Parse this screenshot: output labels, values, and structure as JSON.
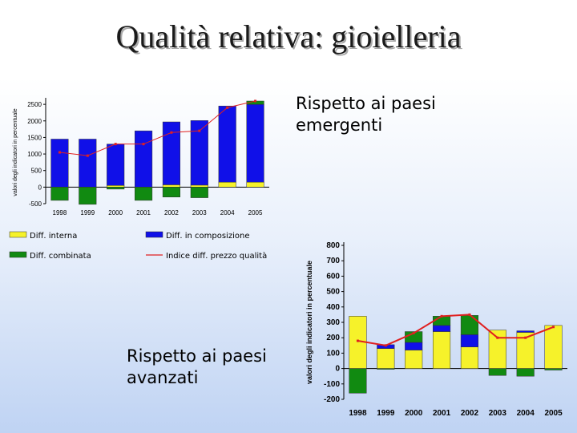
{
  "title": "Qualità relativa: gioielleria",
  "captions": {
    "emerging": "Rispetto ai paesi emergenti",
    "advanced": "Rispetto ai paesi avanzati"
  },
  "colors": {
    "interna": "#f6f22a",
    "composizione": "#1010e8",
    "combinata": "#118a11",
    "indice": "#e02020"
  },
  "chart_data": [
    {
      "type": "bar",
      "caption": "Rispetto ai paesi emergenti",
      "ylabel": "valori degli indicatori in percentuale",
      "ylim": [
        -500,
        2600
      ],
      "yticks": [
        2500,
        2000,
        1500,
        1000,
        500,
        0,
        -500
      ],
      "categories": [
        "1998",
        "1999",
        "2000",
        "2001",
        "2002",
        "2003",
        "2004",
        "2005"
      ],
      "stacked": true,
      "series": [
        {
          "name": "Diff. interna",
          "key": "interna",
          "values": [
            0,
            0,
            50,
            0,
            70,
            60,
            150,
            150
          ]
        },
        {
          "name": "Diff. in composizione",
          "key": "composizione",
          "values": [
            1450,
            1450,
            1250,
            1700,
            1900,
            1950,
            2300,
            2350
          ]
        },
        {
          "name": "Diff. combinata",
          "key": "combinata",
          "values": [
            -400,
            -520,
            -60,
            -400,
            -300,
            -320,
            0,
            100
          ]
        },
        {
          "name": "Indice diff. prezzo qualità",
          "key": "indice",
          "type": "line",
          "values": [
            1050,
            950,
            1300,
            1300,
            1650,
            1700,
            2400,
            2600
          ]
        }
      ],
      "legend": [
        {
          "label": "Diff. interna",
          "key": "interna"
        },
        {
          "label": "Diff. in composizione",
          "key": "composizione"
        },
        {
          "label": "Diff. combinata",
          "key": "combinata"
        },
        {
          "label": "Indice diff. prezzo qualità",
          "key": "indice"
        }
      ]
    },
    {
      "type": "bar",
      "caption": "Rispetto ai paesi avanzati",
      "ylabel": "valori degli indicatori in percentuale",
      "ylim": [
        -200,
        800
      ],
      "yticks": [
        800,
        700,
        600,
        500,
        400,
        300,
        200,
        100,
        0,
        -100,
        -200
      ],
      "categories": [
        "1998",
        "1999",
        "2000",
        "2001",
        "2002",
        "2003",
        "2004",
        "2005"
      ],
      "stacked": true,
      "series": [
        {
          "name": "Diff. interna",
          "key": "interna",
          "values": [
            340,
            130,
            120,
            240,
            140,
            250,
            235,
            280
          ]
        },
        {
          "name": "Diff. in composizione",
          "key": "composizione",
          "values": [
            0,
            25,
            50,
            40,
            80,
            0,
            10,
            0
          ]
        },
        {
          "name": "Diff. combinata",
          "key": "combinata",
          "values": [
            -160,
            -5,
            70,
            60,
            125,
            -45,
            -50,
            -10
          ]
        },
        {
          "name": "Indice diff. prezzo qualità",
          "key": "indice",
          "type": "line",
          "values": [
            180,
            150,
            230,
            340,
            350,
            200,
            200,
            270
          ]
        }
      ]
    }
  ]
}
